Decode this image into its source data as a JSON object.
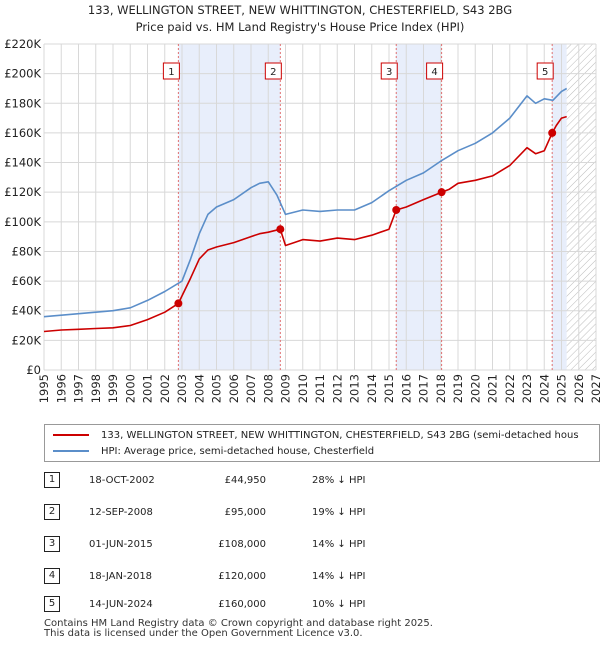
{
  "chart_data": {
    "type": "line",
    "title": "133, WELLINGTON STREET, NEW WHITTINGTON, CHESTERFIELD, S43 2BG",
    "subtitle": "Price paid vs. HM Land Registry's House Price Index (HPI)",
    "xlim": [
      1995,
      2027
    ],
    "ylim": [
      0,
      220000
    ],
    "x_ticks": [
      1995,
      1996,
      1997,
      1998,
      1999,
      2000,
      2001,
      2002,
      2003,
      2004,
      2005,
      2006,
      2007,
      2008,
      2009,
      2010,
      2011,
      2012,
      2013,
      2014,
      2015,
      2016,
      2017,
      2018,
      2019,
      2020,
      2021,
      2022,
      2023,
      2024,
      2025,
      2026,
      2027
    ],
    "y_ticks": [
      {
        "value": 0,
        "label": "£0"
      },
      {
        "value": 20000,
        "label": "£20K"
      },
      {
        "value": 40000,
        "label": "£40K"
      },
      {
        "value": 60000,
        "label": "£60K"
      },
      {
        "value": 80000,
        "label": "£80K"
      },
      {
        "value": 100000,
        "label": "£100K"
      },
      {
        "value": 120000,
        "label": "£120K"
      },
      {
        "value": 140000,
        "label": "£140K"
      },
      {
        "value": 160000,
        "label": "£160K"
      },
      {
        "value": 180000,
        "label": "£180K"
      },
      {
        "value": 200000,
        "label": "£200K"
      },
      {
        "value": 220000,
        "label": "£220K"
      }
    ],
    "forecast_from": 2025.3,
    "shaded_spans": [
      [
        2002.8,
        2008.7
      ],
      [
        2015.4,
        2018.05
      ],
      [
        2024.45,
        2025.3
      ]
    ],
    "series": [
      {
        "name": "133, WELLINGTON STREET, NEW WHITTINGTON, CHESTERFIELD, S43 2BG (semi-detached hous",
        "color": "#cc0000",
        "x": [
          1995,
          1996,
          1997,
          1998,
          1999,
          2000,
          2001,
          2002,
          2002.79,
          2003,
          2003.5,
          2004,
          2004.5,
          2005,
          2006,
          2006.5,
          2007,
          2007.5,
          2008,
          2008.7,
          2009,
          2009.5,
          2010,
          2011,
          2012,
          2013,
          2014,
          2015,
          2015.42,
          2016,
          2017,
          2018.05,
          2018.5,
          2019,
          2020,
          2021,
          2022,
          2023,
          2023.5,
          2024,
          2024.46,
          2024.7,
          2025,
          2025.3
        ],
        "y": [
          26000,
          27000,
          27500,
          28000,
          28500,
          30000,
          34000,
          39000,
          44950,
          50000,
          62000,
          75000,
          81000,
          83000,
          86000,
          88000,
          90000,
          92000,
          93000,
          95000,
          84000,
          86000,
          88000,
          87000,
          89000,
          88000,
          91000,
          95000,
          108000,
          110000,
          115000,
          120000,
          122000,
          126000,
          128000,
          131000,
          138000,
          150000,
          146000,
          148000,
          160000,
          165000,
          170000,
          171000
        ]
      },
      {
        "name": "HPI: Average price, semi-detached house, Chesterfield",
        "color": "#5b8ec9",
        "x": [
          1995,
          1996,
          1997,
          1998,
          1999,
          2000,
          2001,
          2002,
          2003,
          2003.5,
          2004,
          2004.5,
          2005,
          2006,
          2007,
          2007.5,
          2008,
          2008.5,
          2009,
          2010,
          2011,
          2012,
          2013,
          2014,
          2015,
          2016,
          2017,
          2018,
          2019,
          2020,
          2021,
          2022,
          2023,
          2023.5,
          2024,
          2024.5,
          2025,
          2025.3
        ],
        "y": [
          36000,
          37000,
          38000,
          39000,
          40000,
          42000,
          47000,
          53000,
          60000,
          75000,
          92000,
          105000,
          110000,
          115000,
          123000,
          126000,
          127000,
          118000,
          105000,
          108000,
          107000,
          108000,
          108000,
          113000,
          121000,
          128000,
          133000,
          141000,
          148000,
          153000,
          160000,
          170000,
          185000,
          180000,
          183000,
          182000,
          188000,
          190000
        ]
      }
    ],
    "sales": [
      {
        "id": "1",
        "x": 2002.79,
        "y": 44950
      },
      {
        "id": "2",
        "x": 2008.7,
        "y": 95000
      },
      {
        "id": "3",
        "x": 2015.42,
        "y": 108000
      },
      {
        "id": "4",
        "x": 2018.05,
        "y": 120000
      },
      {
        "id": "5",
        "x": 2024.46,
        "y": 160000
      }
    ]
  },
  "colors": {
    "property_line": "#cc0000",
    "hpi_line": "#5b8ec9",
    "span_fill": "#e8eefb",
    "forecast_hatch": "#bbbbbb",
    "grid": "#d8d8d8"
  },
  "legend": {
    "property_label": "133, WELLINGTON STREET, NEW WHITTINGTON, CHESTERFIELD, S43 2BG (semi-detached hous",
    "hpi_label": "HPI: Average price, semi-detached house, Chesterfield"
  },
  "transactions": [
    {
      "num": "1",
      "date": "18-OCT-2002",
      "price": "£44,950",
      "hpi": "28% ↓ HPI"
    },
    {
      "num": "2",
      "date": "12-SEP-2008",
      "price": "£95,000",
      "hpi": "19% ↓ HPI"
    },
    {
      "num": "3",
      "date": "01-JUN-2015",
      "price": "£108,000",
      "hpi": "14% ↓ HPI"
    },
    {
      "num": "4",
      "date": "18-JAN-2018",
      "price": "£120,000",
      "hpi": "14% ↓ HPI"
    },
    {
      "num": "5",
      "date": "14-JUN-2024",
      "price": "£160,000",
      "hpi": "10% ↓ HPI"
    }
  ],
  "footer": {
    "line1": "Contains HM Land Registry data © Crown copyright and database right 2025.",
    "line2": "This data is licensed under the Open Government Licence v3.0."
  }
}
